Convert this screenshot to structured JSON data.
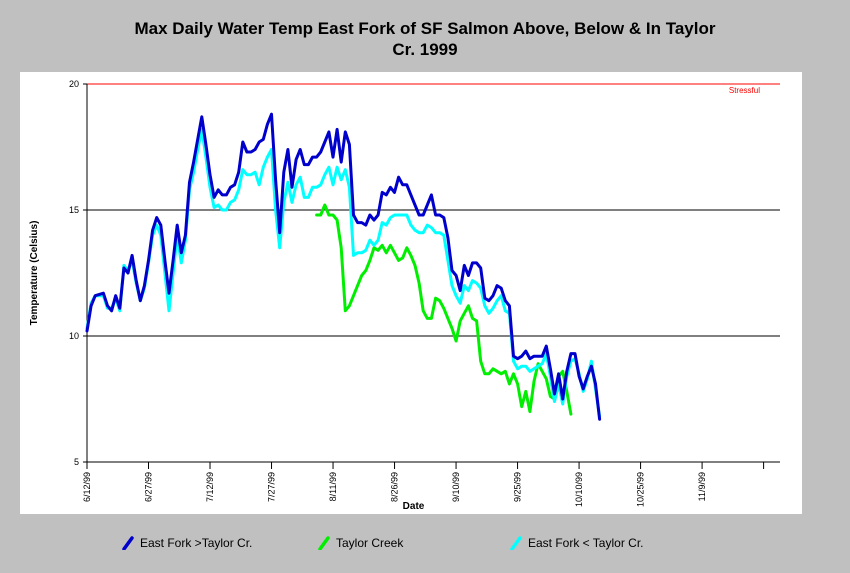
{
  "title_line1": "Max Daily Water Temp East Fork of SF Salmon Above, Below & In Taylor",
  "title_line2": "Cr. 1999",
  "chart_data": {
    "type": "line",
    "xlabel": "Date",
    "ylabel": "Temperature (Celsius)",
    "ylim": [
      5,
      20
    ],
    "yticks": [
      5,
      10,
      15,
      20
    ],
    "x_tick_labels": [
      "6/12/99",
      "6/27/99",
      "7/12/99",
      "7/27/99",
      "8/11/99",
      "8/26/99",
      "9/10/99",
      "9/25/99",
      "10/10/99",
      "10/25/99",
      "11/9/99"
    ],
    "grid": "horizontal at 10, 15, 20",
    "threshold": {
      "value": 20,
      "label": "Stressful",
      "color": "#ff0000"
    },
    "x_day_range": [
      0,
      169
    ],
    "series": [
      {
        "name": "East Fork >Taylor Cr.",
        "color": "#0000cc",
        "points": [
          [
            0,
            10.2
          ],
          [
            1,
            11.2
          ],
          [
            2,
            11.6
          ],
          [
            4,
            11.7
          ],
          [
            5,
            11.2
          ],
          [
            6,
            11.0
          ],
          [
            7,
            11.6
          ],
          [
            8,
            11.1
          ],
          [
            9,
            12.7
          ],
          [
            10,
            12.5
          ],
          [
            11,
            13.2
          ],
          [
            12,
            12.2
          ],
          [
            13,
            11.4
          ],
          [
            14,
            12.0
          ],
          [
            15,
            13.0
          ],
          [
            16,
            14.2
          ],
          [
            17,
            14.7
          ],
          [
            18,
            14.4
          ],
          [
            19,
            13.0
          ],
          [
            20,
            11.7
          ],
          [
            21,
            13.0
          ],
          [
            22,
            14.4
          ],
          [
            23,
            13.3
          ],
          [
            24,
            14.0
          ],
          [
            25,
            16.1
          ],
          [
            26,
            16.9
          ],
          [
            27,
            17.8
          ],
          [
            28,
            18.7
          ],
          [
            29,
            17.6
          ],
          [
            30,
            16.4
          ],
          [
            31,
            15.5
          ],
          [
            32,
            15.8
          ],
          [
            33,
            15.6
          ],
          [
            34,
            15.6
          ],
          [
            35,
            15.9
          ],
          [
            36,
            16.0
          ],
          [
            37,
            16.5
          ],
          [
            38,
            17.7
          ],
          [
            39,
            17.3
          ],
          [
            40,
            17.3
          ],
          [
            41,
            17.4
          ],
          [
            42,
            17.7
          ],
          [
            43,
            17.8
          ],
          [
            44,
            18.4
          ],
          [
            45,
            18.8
          ],
          [
            46,
            16.2
          ],
          [
            47,
            14.1
          ],
          [
            48,
            16.5
          ],
          [
            49,
            17.4
          ],
          [
            50,
            15.9
          ],
          [
            51,
            17.0
          ],
          [
            52,
            17.4
          ],
          [
            53,
            16.8
          ],
          [
            54,
            16.8
          ],
          [
            55,
            17.1
          ],
          [
            56,
            17.1
          ],
          [
            57,
            17.3
          ],
          [
            58,
            17.7
          ],
          [
            59,
            18.1
          ],
          [
            60,
            17.1
          ],
          [
            61,
            18.2
          ],
          [
            62,
            16.9
          ],
          [
            63,
            18.1
          ],
          [
            64,
            17.6
          ],
          [
            65,
            14.8
          ],
          [
            66,
            14.5
          ],
          [
            67,
            14.5
          ],
          [
            68,
            14.4
          ],
          [
            69,
            14.8
          ],
          [
            70,
            14.6
          ],
          [
            71,
            14.8
          ],
          [
            72,
            15.7
          ],
          [
            73,
            15.6
          ],
          [
            74,
            15.9
          ],
          [
            75,
            15.7
          ],
          [
            76,
            16.3
          ],
          [
            77,
            16.0
          ],
          [
            78,
            16.0
          ],
          [
            79,
            15.6
          ],
          [
            80,
            15.2
          ],
          [
            81,
            14.8
          ],
          [
            82,
            14.8
          ],
          [
            83,
            15.2
          ],
          [
            84,
            15.6
          ],
          [
            85,
            14.8
          ],
          [
            86,
            14.8
          ],
          [
            87,
            14.7
          ],
          [
            88,
            13.9
          ],
          [
            89,
            12.6
          ],
          [
            90,
            12.4
          ],
          [
            91,
            11.8
          ],
          [
            92,
            12.8
          ],
          [
            93,
            12.4
          ],
          [
            94,
            12.9
          ],
          [
            95,
            12.9
          ],
          [
            96,
            12.7
          ],
          [
            97,
            11.5
          ],
          [
            98,
            11.4
          ],
          [
            99,
            11.6
          ],
          [
            100,
            12.0
          ],
          [
            101,
            11.9
          ],
          [
            102,
            11.4
          ],
          [
            103,
            11.2
          ],
          [
            104,
            9.2
          ],
          [
            105,
            9.1
          ],
          [
            106,
            9.2
          ],
          [
            107,
            9.4
          ],
          [
            108,
            9.1
          ],
          [
            109,
            9.2
          ],
          [
            110,
            9.2
          ],
          [
            111,
            9.2
          ],
          [
            112,
            9.6
          ],
          [
            113,
            8.7
          ],
          [
            114,
            7.7
          ],
          [
            115,
            8.5
          ],
          [
            116,
            7.5
          ],
          [
            117,
            8.6
          ],
          [
            118,
            9.3
          ],
          [
            119,
            9.3
          ],
          [
            120,
            8.4
          ],
          [
            121,
            7.9
          ],
          [
            122,
            8.4
          ],
          [
            123,
            8.8
          ],
          [
            124,
            8.1
          ],
          [
            125,
            6.7
          ]
        ]
      },
      {
        "name": "Taylor Creek",
        "color": "#00ee00",
        "points": [
          [
            56,
            14.8
          ],
          [
            57,
            14.8
          ],
          [
            58,
            15.2
          ],
          [
            59,
            14.8
          ],
          [
            60,
            14.8
          ],
          [
            61,
            14.6
          ],
          [
            62,
            13.5
          ],
          [
            63,
            11.0
          ],
          [
            64,
            11.2
          ],
          [
            65,
            11.6
          ],
          [
            66,
            12.0
          ],
          [
            67,
            12.4
          ],
          [
            68,
            12.6
          ],
          [
            69,
            13.0
          ],
          [
            70,
            13.5
          ],
          [
            71,
            13.4
          ],
          [
            72,
            13.6
          ],
          [
            73,
            13.3
          ],
          [
            74,
            13.6
          ],
          [
            75,
            13.3
          ],
          [
            76,
            13.0
          ],
          [
            77,
            13.1
          ],
          [
            78,
            13.5
          ],
          [
            79,
            13.2
          ],
          [
            80,
            12.8
          ],
          [
            81,
            12.1
          ],
          [
            82,
            11.0
          ],
          [
            83,
            10.7
          ],
          [
            84,
            10.7
          ],
          [
            85,
            11.5
          ],
          [
            86,
            11.4
          ],
          [
            87,
            11.1
          ],
          [
            88,
            10.7
          ],
          [
            89,
            10.3
          ],
          [
            90,
            9.8
          ],
          [
            91,
            10.6
          ],
          [
            92,
            10.9
          ],
          [
            93,
            11.2
          ],
          [
            94,
            10.7
          ],
          [
            95,
            10.6
          ],
          [
            96,
            9.0
          ],
          [
            97,
            8.5
          ],
          [
            98,
            8.5
          ],
          [
            99,
            8.7
          ],
          [
            100,
            8.6
          ],
          [
            101,
            8.5
          ],
          [
            102,
            8.6
          ],
          [
            103,
            8.1
          ],
          [
            104,
            8.5
          ],
          [
            105,
            8.1
          ],
          [
            106,
            7.2
          ],
          [
            107,
            7.8
          ],
          [
            108,
            7.0
          ],
          [
            109,
            8.2
          ],
          [
            110,
            8.9
          ],
          [
            111,
            8.6
          ],
          [
            112,
            8.3
          ],
          [
            113,
            7.6
          ],
          [
            114,
            7.5
          ],
          [
            115,
            8.4
          ],
          [
            116,
            8.6
          ],
          [
            117,
            7.8
          ],
          [
            118,
            6.9
          ]
        ]
      },
      {
        "name": "East Fork < Taylor Cr.",
        "color": "#00ffff",
        "points": [
          [
            0,
            10.3
          ],
          [
            1,
            11.3
          ],
          [
            2,
            11.6
          ],
          [
            4,
            11.6
          ],
          [
            5,
            11.1
          ],
          [
            6,
            11.1
          ],
          [
            7,
            11.5
          ],
          [
            8,
            11.0
          ],
          [
            9,
            12.8
          ],
          [
            10,
            12.6
          ],
          [
            11,
            13.0
          ],
          [
            12,
            12.1
          ],
          [
            13,
            11.4
          ],
          [
            14,
            11.9
          ],
          [
            15,
            12.9
          ],
          [
            16,
            14.0
          ],
          [
            17,
            14.4
          ],
          [
            18,
            14.0
          ],
          [
            19,
            12.5
          ],
          [
            20,
            11.0
          ],
          [
            21,
            12.5
          ],
          [
            22,
            14.0
          ],
          [
            23,
            12.9
          ],
          [
            24,
            13.8
          ],
          [
            25,
            15.8
          ],
          [
            26,
            16.5
          ],
          [
            27,
            17.4
          ],
          [
            28,
            18.2
          ],
          [
            29,
            17.1
          ],
          [
            30,
            15.9
          ],
          [
            31,
            15.1
          ],
          [
            32,
            15.2
          ],
          [
            33,
            15.0
          ],
          [
            34,
            15.0
          ],
          [
            35,
            15.3
          ],
          [
            36,
            15.4
          ],
          [
            37,
            15.8
          ],
          [
            38,
            16.6
          ],
          [
            39,
            16.4
          ],
          [
            40,
            16.4
          ],
          [
            41,
            16.5
          ],
          [
            42,
            16.0
          ],
          [
            43,
            16.7
          ],
          [
            44,
            17.1
          ],
          [
            45,
            17.4
          ],
          [
            46,
            15.0
          ],
          [
            47,
            13.5
          ],
          [
            48,
            15.3
          ],
          [
            49,
            16.1
          ],
          [
            50,
            15.3
          ],
          [
            51,
            16.0
          ],
          [
            52,
            16.3
          ],
          [
            53,
            15.5
          ],
          [
            54,
            15.5
          ],
          [
            55,
            15.9
          ],
          [
            56,
            15.9
          ],
          [
            57,
            16.0
          ],
          [
            58,
            16.4
          ],
          [
            59,
            16.7
          ],
          [
            60,
            16.0
          ],
          [
            61,
            16.7
          ],
          [
            62,
            16.2
          ],
          [
            63,
            16.6
          ],
          [
            64,
            15.9
          ],
          [
            65,
            13.2
          ],
          [
            66,
            13.3
          ],
          [
            67,
            13.3
          ],
          [
            68,
            13.4
          ],
          [
            69,
            13.8
          ],
          [
            70,
            13.6
          ],
          [
            71,
            13.8
          ],
          [
            72,
            14.5
          ],
          [
            73,
            14.4
          ],
          [
            74,
            14.7
          ],
          [
            75,
            14.8
          ],
          [
            76,
            14.8
          ],
          [
            77,
            14.8
          ],
          [
            78,
            14.8
          ],
          [
            79,
            14.4
          ],
          [
            80,
            14.2
          ],
          [
            81,
            14.1
          ],
          [
            82,
            14.1
          ],
          [
            83,
            14.4
          ],
          [
            84,
            14.3
          ],
          [
            85,
            14.1
          ],
          [
            86,
            14.1
          ],
          [
            87,
            14.0
          ],
          [
            88,
            13.0
          ],
          [
            89,
            12.0
          ],
          [
            90,
            11.6
          ],
          [
            91,
            11.3
          ],
          [
            92,
            12.0
          ],
          [
            93,
            11.8
          ],
          [
            94,
            12.2
          ],
          [
            95,
            12.1
          ],
          [
            96,
            11.9
          ],
          [
            97,
            11.2
          ],
          [
            98,
            10.9
          ],
          [
            99,
            11.1
          ],
          [
            100,
            11.4
          ],
          [
            101,
            11.6
          ],
          [
            102,
            11.0
          ],
          [
            103,
            10.9
          ],
          [
            104,
            9.0
          ],
          [
            105,
            8.7
          ],
          [
            106,
            8.8
          ],
          [
            107,
            8.8
          ],
          [
            108,
            8.6
          ],
          [
            109,
            8.7
          ],
          [
            110,
            8.8
          ],
          [
            111,
            8.9
          ],
          [
            112,
            9.3
          ],
          [
            113,
            8.4
          ],
          [
            114,
            7.4
          ],
          [
            115,
            8.1
          ],
          [
            116,
            7.3
          ],
          [
            117,
            8.4
          ],
          [
            118,
            9.0
          ],
          [
            119,
            9.1
          ],
          [
            120,
            8.5
          ],
          [
            121,
            7.8
          ],
          [
            122,
            8.3
          ],
          [
            123,
            9.0
          ],
          [
            124,
            7.9
          ],
          [
            125,
            6.8
          ]
        ]
      }
    ]
  }
}
